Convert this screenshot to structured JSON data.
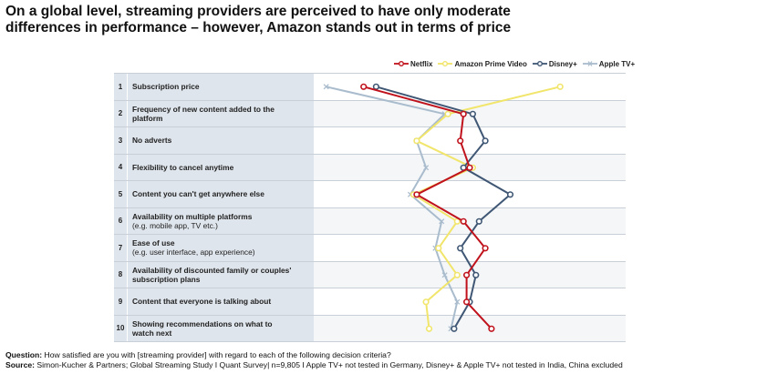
{
  "chart_data": {
    "type": "line",
    "title_lines": [
      "On a global level, streaming providers are perceived to have only moderate",
      "differences in performance – however, Amazon stands out in terms of price"
    ],
    "xlabel": "",
    "ylabel": "",
    "x_axis": "satisfaction (relative, unlabeled)",
    "xlim": [
      0,
      100
    ],
    "categories": [
      {
        "num": "1",
        "lines": [
          "Subscription price"
        ],
        "sub": []
      },
      {
        "num": "2",
        "lines": [
          "Frequency of new content added to the",
          "platform"
        ],
        "sub": []
      },
      {
        "num": "3",
        "lines": [
          "No adverts"
        ],
        "sub": []
      },
      {
        "num": "4",
        "lines": [
          "Flexibility to cancel anytime"
        ],
        "sub": []
      },
      {
        "num": "5",
        "lines": [
          "Content you can't get anywhere else"
        ],
        "sub": []
      },
      {
        "num": "6",
        "lines": [
          "Availability on multiple platforms"
        ],
        "sub": [
          "(e.g. mobile app, TV etc.)"
        ]
      },
      {
        "num": "7",
        "lines": [
          "Ease of use"
        ],
        "sub": [
          "(e.g. user interface, app experience)"
        ]
      },
      {
        "num": "8",
        "lines": [
          "Availability of discounted family or couples'",
          "subscription plans"
        ],
        "sub": []
      },
      {
        "num": "9",
        "lines": [
          "Content that everyone is talking about"
        ],
        "sub": []
      },
      {
        "num": "10",
        "lines": [
          "Showing recommendations on what to",
          "watch next"
        ],
        "sub": []
      }
    ],
    "series": [
      {
        "name": "Apple TV+",
        "color": "#a9bccd",
        "marker": "x",
        "values": [
          4,
          42,
          33,
          36,
          31,
          41,
          39,
          42,
          46,
          44
        ]
      },
      {
        "name": "Amazon Prime Video",
        "color": "#f1e56b",
        "marker": "o",
        "values": [
          79,
          43,
          33,
          51,
          32,
          46,
          40,
          46,
          36,
          37
        ]
      },
      {
        "name": "Disney+",
        "color": "#3f5774",
        "marker": "o",
        "values": [
          20,
          51,
          55,
          48,
          63,
          53,
          47,
          52,
          50,
          45
        ]
      },
      {
        "name": "Netflix",
        "color": "#c0121c",
        "marker": "o",
        "values": [
          16,
          48,
          47,
          50,
          33,
          48,
          55,
          49,
          49,
          57
        ]
      }
    ],
    "legend_order": [
      "Netflix",
      "Amazon Prime Video",
      "Disney+",
      "Apple TV+"
    ],
    "legend_position": "top-right",
    "grid": false
  },
  "footer": {
    "question_label": "Question:",
    "question_text": "How satisfied are you with [streaming provider] with regard to each of the following decision criteria?",
    "source_label": "Source:",
    "source_text": "Simon-Kucher & Partners; Global Streaming Study I Quant Survey| n=9,805 I Apple TV+ not tested in Germany, Disney+ & Apple TV+ not tested in India, China excluded"
  }
}
